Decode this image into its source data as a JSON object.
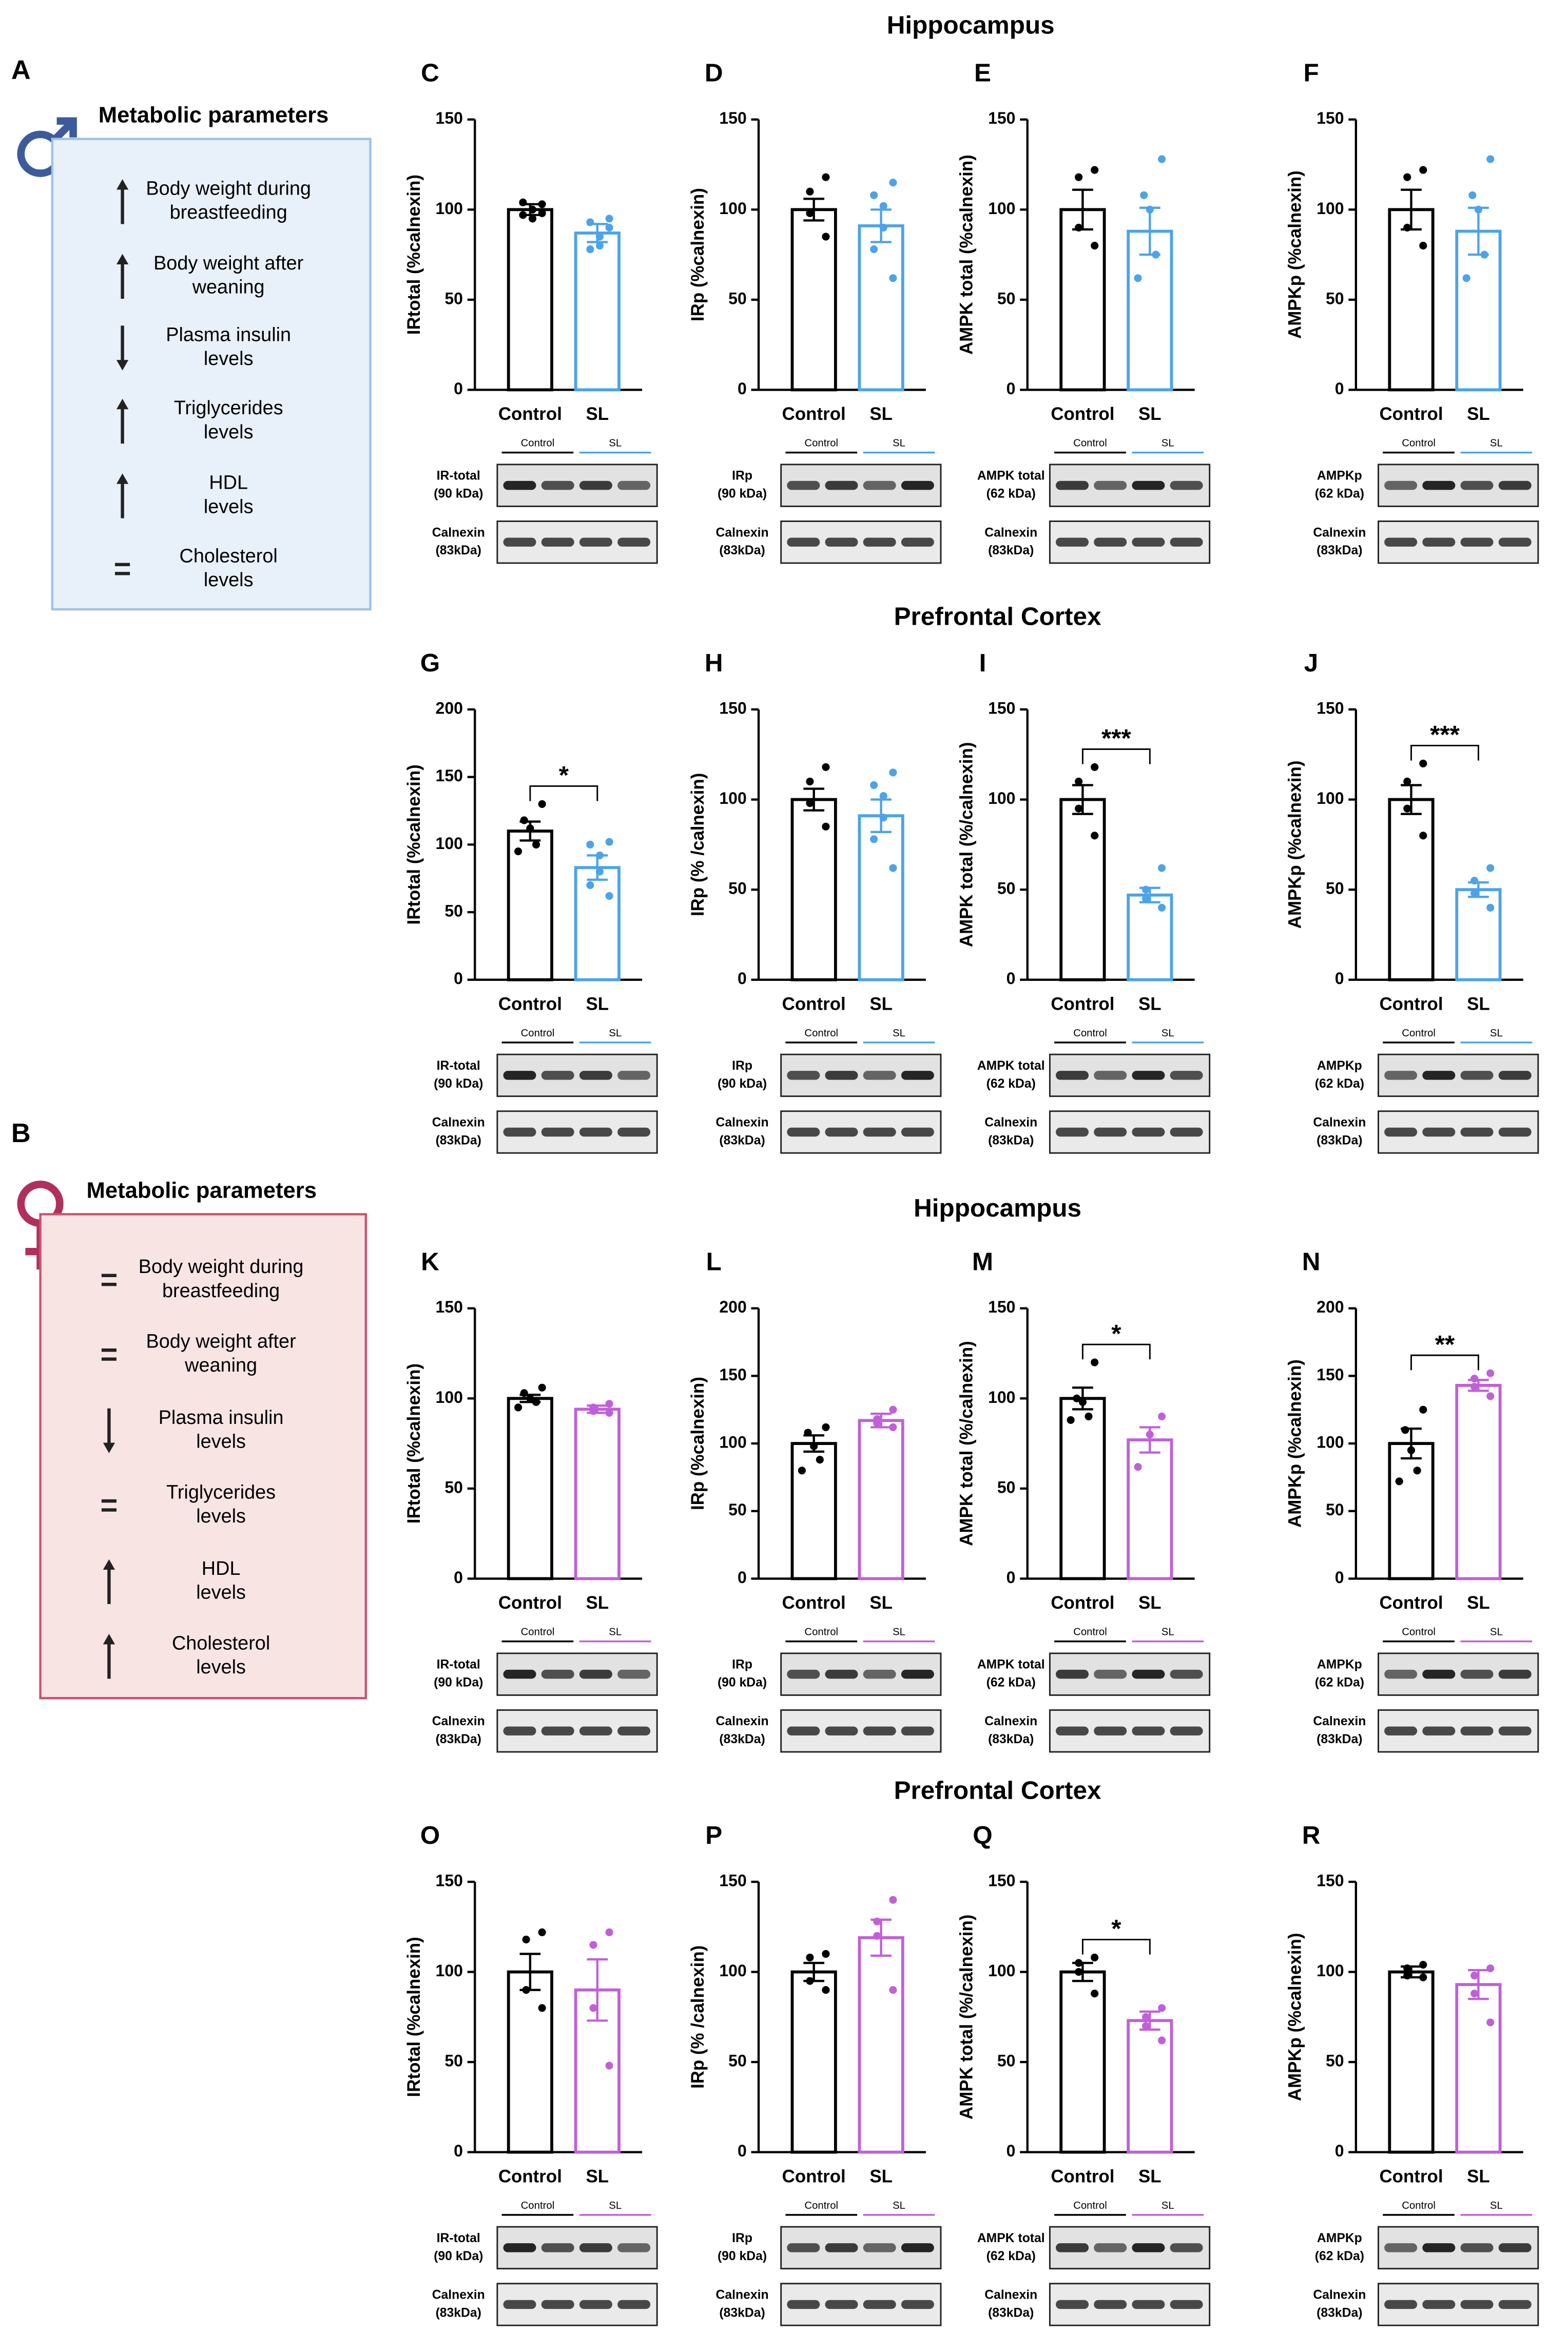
{
  "section_titles": [
    "Hippocampus",
    "Prefrontal Cortex",
    "Hippocampus",
    "Prefrontal Cortex"
  ],
  "panels": [
    {
      "letter": "A",
      "title": "Metabolic parameters",
      "items": [
        {
          "trend": "up",
          "text": [
            "Body weight during",
            "breastfeeding"
          ]
        },
        {
          "trend": "up",
          "text": [
            "Body weight after",
            "weaning"
          ]
        },
        {
          "trend": "down",
          "text": [
            "Plasma insulin",
            "levels"
          ]
        },
        {
          "trend": "up",
          "text": [
            "Triglycerides",
            "levels"
          ]
        },
        {
          "trend": "up",
          "text": [
            "HDL",
            "levels"
          ]
        },
        {
          "trend": "equal",
          "text": [
            "Cholesterol",
            "levels"
          ]
        }
      ]
    },
    {
      "letter": "B",
      "title": "Metabolic parameters",
      "items": [
        {
          "trend": "equal",
          "text": [
            "Body weight during",
            "breastfeeding"
          ]
        },
        {
          "trend": "equal",
          "text": [
            "Body weight after",
            "weaning"
          ]
        },
        {
          "trend": "down",
          "text": [
            "Plasma insulin",
            "levels"
          ]
        },
        {
          "trend": "equal",
          "text": [
            "Triglycerides",
            "levels"
          ]
        },
        {
          "trend": "up",
          "text": [
            "HDL",
            "levels"
          ]
        },
        {
          "trend": "up",
          "text": [
            "Cholesterol",
            "levels"
          ]
        }
      ]
    }
  ],
  "chart_data": [
    {
      "type": "bar",
      "letter": "C",
      "ylabel": "IRtotal (%calnexin)",
      "categories": [
        "Control",
        "SL"
      ],
      "colors": [
        "#000000",
        "#4da3e8"
      ],
      "values": [
        100,
        87
      ],
      "errors": [
        3,
        5
      ],
      "points": [
        [
          103,
          97,
          95,
          100,
          104,
          98
        ],
        [
          95,
          93,
          85,
          80,
          78,
          90
        ]
      ],
      "ylim": [
        0,
        150
      ],
      "yticks": [
        0,
        50,
        100,
        150
      ],
      "blot_groups": [
        "Control",
        "SL"
      ],
      "blot_labels": [
        [
          "IR-total",
          "(90 kDa)"
        ],
        [
          "Calnexin",
          "(83kDa)"
        ]
      ]
    },
    {
      "type": "bar",
      "letter": "D",
      "ylabel": "IRp (%calnexin)",
      "categories": [
        "Control",
        "SL"
      ],
      "colors": [
        "#000000",
        "#4da3e8"
      ],
      "values": [
        100,
        91
      ],
      "errors": [
        6,
        9
      ],
      "points": [
        [
          118,
          110,
          98,
          85
        ],
        [
          115,
          108,
          102,
          90,
          78,
          62
        ]
      ],
      "ylim": [
        0,
        150
      ],
      "yticks": [
        0,
        50,
        100,
        150
      ],
      "blot_groups": [
        "Control",
        "SL"
      ],
      "blot_labels": [
        [
          "IRp",
          "(90 kDa)"
        ],
        [
          "Calnexin",
          "(83kDa)"
        ]
      ]
    },
    {
      "type": "bar",
      "letter": "E",
      "ylabel": "AMPK total (%calnexin)",
      "categories": [
        "Control",
        "SL"
      ],
      "colors": [
        "#000000",
        "#4da3e8"
      ],
      "values": [
        100,
        88
      ],
      "errors": [
        11,
        13
      ],
      "points": [
        [
          122,
          118,
          90,
          80
        ],
        [
          128,
          108,
          100,
          75,
          62
        ]
      ],
      "ylim": [
        0,
        150
      ],
      "yticks": [
        0,
        50,
        100,
        150
      ],
      "blot_groups": [
        "Control",
        "SL"
      ],
      "blot_labels": [
        [
          "AMPK total",
          "(62 kDa)"
        ],
        [
          "Calnexin",
          "(83kDa)"
        ]
      ]
    },
    {
      "type": "bar",
      "letter": "F",
      "ylabel": "AMPKp (%calnexin)",
      "categories": [
        "Control",
        "SL"
      ],
      "colors": [
        "#000000",
        "#4da3e8"
      ],
      "values": [
        100,
        88
      ],
      "errors": [
        11,
        13
      ],
      "points": [
        [
          122,
          118,
          90,
          80
        ],
        [
          128,
          108,
          100,
          75,
          62
        ]
      ],
      "ylim": [
        0,
        150
      ],
      "yticks": [
        0,
        50,
        100,
        150
      ],
      "blot_groups": [
        "Control",
        "SL"
      ],
      "blot_labels": [
        [
          "AMPKp",
          "(62 kDa)"
        ],
        [
          "Calnexin",
          "(83kDa)"
        ]
      ]
    },
    {
      "type": "bar",
      "letter": "G",
      "ylabel": "IRtotal (%calnexin)",
      "categories": [
        "Control",
        "SL"
      ],
      "colors": [
        "#000000",
        "#4da3e8"
      ],
      "values": [
        110,
        83
      ],
      "errors": [
        7,
        9
      ],
      "points": [
        [
          130,
          118,
          112,
          100,
          95
        ],
        [
          102,
          100,
          92,
          80,
          70,
          62
        ]
      ],
      "ylim": [
        0,
        200
      ],
      "yticks": [
        0,
        50,
        100,
        150,
        200
      ],
      "significance": "*",
      "blot_groups": [
        "Control",
        "SL"
      ],
      "blot_labels": [
        [
          "IR-total",
          "(90 kDa)"
        ],
        [
          "Calnexin",
          "(83kDa)"
        ]
      ]
    },
    {
      "type": "bar",
      "letter": "H",
      "ylabel": "IRp (% /calnexin)",
      "categories": [
        "Control",
        "SL"
      ],
      "colors": [
        "#000000",
        "#4da3e8"
      ],
      "values": [
        100,
        91
      ],
      "errors": [
        6,
        9
      ],
      "points": [
        [
          118,
          110,
          98,
          85
        ],
        [
          115,
          108,
          102,
          90,
          78,
          62
        ]
      ],
      "ylim": [
        0,
        150
      ],
      "yticks": [
        0,
        50,
        100,
        150
      ],
      "blot_groups": [
        "Control",
        "SL"
      ],
      "blot_labels": [
        [
          "IRp",
          "(90 kDa)"
        ],
        [
          "Calnexin",
          "(83kDa)"
        ]
      ]
    },
    {
      "type": "bar",
      "letter": "I",
      "ylabel": "AMPK total (%/calnexin)",
      "categories": [
        "Control",
        "SL"
      ],
      "colors": [
        "#000000",
        "#4da3e8"
      ],
      "values": [
        100,
        47
      ],
      "errors": [
        8,
        4
      ],
      "points": [
        [
          118,
          110,
          95,
          80
        ],
        [
          62,
          50,
          45,
          40
        ]
      ],
      "ylim": [
        0,
        150
      ],
      "yticks": [
        0,
        50,
        100,
        150
      ],
      "significance": "***",
      "blot_groups": [
        "Control",
        "SL"
      ],
      "blot_labels": [
        [
          "AMPK total",
          "(62 kDa)"
        ],
        [
          "Calnexin",
          "(83kDa)"
        ]
      ]
    },
    {
      "type": "bar",
      "letter": "J",
      "ylabel": "AMPKp (%calnexin)",
      "categories": [
        "Control",
        "SL"
      ],
      "colors": [
        "#000000",
        "#4da3e8"
      ],
      "values": [
        100,
        50
      ],
      "errors": [
        8,
        4
      ],
      "points": [
        [
          120,
          110,
          95,
          80
        ],
        [
          62,
          55,
          48,
          40
        ]
      ],
      "ylim": [
        0,
        150
      ],
      "yticks": [
        0,
        50,
        100,
        150
      ],
      "significance": "***",
      "blot_groups": [
        "Control",
        "SL"
      ],
      "blot_labels": [
        [
          "AMPKp",
          "(62 kDa)"
        ],
        [
          "Calnexin",
          "(83kDa)"
        ]
      ]
    },
    {
      "type": "bar",
      "letter": "K",
      "ylabel": "IRtotal (%calnexin)",
      "categories": [
        "Control",
        "SL"
      ],
      "colors": [
        "#000000",
        "#c060d8"
      ],
      "values": [
        100,
        94
      ],
      "errors": [
        2,
        2
      ],
      "points": [
        [
          106,
          103,
          100,
          98,
          95
        ],
        [
          97,
          95,
          93,
          92
        ]
      ],
      "ylim": [
        0,
        150
      ],
      "yticks": [
        0,
        50,
        100,
        150
      ],
      "blot_groups": [
        "Control",
        "SL"
      ],
      "blot_labels": [
        [
          "IR-total",
          "(90 kDa)"
        ],
        [
          "Calnexin",
          "(83kDa)"
        ]
      ]
    },
    {
      "type": "bar",
      "letter": "L",
      "ylabel": "IRp (%calnexin)",
      "categories": [
        "Control",
        "SL"
      ],
      "colors": [
        "#000000",
        "#c060d8"
      ],
      "values": [
        100,
        117
      ],
      "errors": [
        6,
        5
      ],
      "points": [
        [
          112,
          108,
          98,
          88,
          80
        ],
        [
          125,
          118,
          115,
          112
        ]
      ],
      "ylim": [
        0,
        200
      ],
      "yticks": [
        0,
        50,
        100,
        150,
        200
      ],
      "blot_groups": [
        "Control",
        "SL"
      ],
      "blot_labels": [
        [
          "IRp",
          "(90 kDa)"
        ],
        [
          "Calnexin",
          "(83kDa)"
        ]
      ]
    },
    {
      "type": "bar",
      "letter": "M",
      "ylabel": "AMPK total (%/calnexin)",
      "categories": [
        "Control",
        "SL"
      ],
      "colors": [
        "#000000",
        "#c060d8"
      ],
      "values": [
        100,
        77
      ],
      "errors": [
        6,
        7
      ],
      "points": [
        [
          120,
          100,
          98,
          90,
          88
        ],
        [
          90,
          80,
          62
        ]
      ],
      "ylim": [
        0,
        150
      ],
      "yticks": [
        0,
        50,
        100,
        150
      ],
      "significance": "*",
      "blot_groups": [
        "Control",
        "SL"
      ],
      "blot_labels": [
        [
          "AMPK total",
          "(62 kDa)"
        ],
        [
          "Calnexin",
          "(83kDa)"
        ]
      ]
    },
    {
      "type": "bar",
      "letter": "N",
      "ylabel": "AMPKp (%calnexin)",
      "categories": [
        "Control",
        "SL"
      ],
      "colors": [
        "#000000",
        "#c060d8"
      ],
      "values": [
        100,
        143
      ],
      "errors": [
        11,
        4
      ],
      "points": [
        [
          125,
          110,
          95,
          80,
          72
        ],
        [
          152,
          148,
          142,
          135
        ]
      ],
      "ylim": [
        0,
        200
      ],
      "yticks": [
        0,
        50,
        100,
        150,
        200
      ],
      "significance": "**",
      "blot_groups": [
        "Control",
        "SL"
      ],
      "blot_labels": [
        [
          "AMPKp",
          "(62 kDa)"
        ],
        [
          "Calnexin",
          "(83kDa)"
        ]
      ]
    },
    {
      "type": "bar",
      "letter": "O",
      "ylabel": "IRtotal (%calnexin)",
      "categories": [
        "Control",
        "SL"
      ],
      "colors": [
        "#000000",
        "#c060d8"
      ],
      "values": [
        100,
        90
      ],
      "errors": [
        10,
        17
      ],
      "points": [
        [
          122,
          118,
          90,
          80
        ],
        [
          122,
          115,
          80,
          48
        ]
      ],
      "ylim": [
        0,
        150
      ],
      "yticks": [
        0,
        50,
        100,
        150
      ],
      "blot_groups": [
        "Control",
        "SL"
      ],
      "blot_labels": [
        [
          "IR-total",
          "(90 kDa)"
        ],
        [
          "Calnexin",
          "(83kDa)"
        ]
      ]
    },
    {
      "type": "bar",
      "letter": "P",
      "ylabel": "IRp (% /calnexin)",
      "categories": [
        "Control",
        "SL"
      ],
      "colors": [
        "#000000",
        "#c060d8"
      ],
      "values": [
        100,
        119
      ],
      "errors": [
        5,
        10
      ],
      "points": [
        [
          110,
          108,
          95,
          90
        ],
        [
          140,
          128,
          120,
          90
        ]
      ],
      "ylim": [
        0,
        150
      ],
      "yticks": [
        0,
        50,
        100,
        150
      ],
      "blot_groups": [
        "Control",
        "SL"
      ],
      "blot_labels": [
        [
          "IRp",
          "(90 kDa)"
        ],
        [
          "Calnexin",
          "(83kDa)"
        ]
      ]
    },
    {
      "type": "bar",
      "letter": "Q",
      "ylabel": "AMPK total (%/calnexin)",
      "categories": [
        "Control",
        "SL"
      ],
      "colors": [
        "#000000",
        "#c060d8"
      ],
      "values": [
        100,
        73
      ],
      "errors": [
        5,
        5
      ],
      "points": [
        [
          108,
          105,
          100,
          88
        ],
        [
          80,
          75,
          70,
          62
        ]
      ],
      "ylim": [
        0,
        150
      ],
      "yticks": [
        0,
        50,
        100,
        150
      ],
      "significance": "*",
      "blot_groups": [
        "Control",
        "SL"
      ],
      "blot_labels": [
        [
          "AMPK total",
          "(62 kDa)"
        ],
        [
          "Calnexin",
          "(83kDa)"
        ]
      ]
    },
    {
      "type": "bar",
      "letter": "R",
      "ylabel": "AMPKp  (%calnexin)",
      "categories": [
        "Control",
        "SL"
      ],
      "colors": [
        "#000000",
        "#c060d8"
      ],
      "values": [
        100,
        93
      ],
      "errors": [
        3,
        8
      ],
      "points": [
        [
          104,
          102,
          98,
          97
        ],
        [
          102,
          98,
          88,
          72
        ]
      ],
      "ylim": [
        0,
        150
      ],
      "yticks": [
        0,
        50,
        100,
        150
      ],
      "blot_groups": [
        "Control",
        "SL"
      ],
      "blot_labels": [
        [
          "AMPKp",
          "(62 kDa)"
        ],
        [
          "Calnexin",
          "(83kDa)"
        ]
      ]
    }
  ]
}
